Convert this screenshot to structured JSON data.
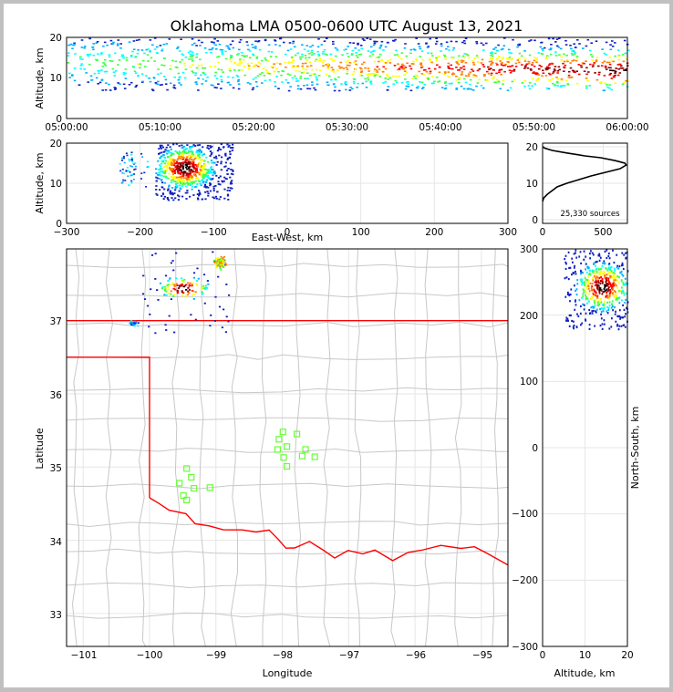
{
  "title": "Oklahoma LMA 0500-0600 UTC August 13, 2021",
  "colors": {
    "border": "#c0c0c0",
    "state_line": "#ff0000",
    "county_line": "#c8c8c8",
    "grid": "#e6e6e6",
    "station": "#66ff33",
    "density_scale": [
      "#1020c0",
      "#00b0ff",
      "#00ffff",
      "#40ff40",
      "#ffff00",
      "#ff8000",
      "#ff0000",
      "#900000",
      "#000000",
      "#ffffff"
    ]
  },
  "chart_data": [
    {
      "id": "time_height",
      "type": "heatmap",
      "xlabel": "",
      "ylabel": "Altitude, km",
      "xlim": [
        "05:00:00",
        "06:00:00"
      ],
      "xticks": [
        "05:00:00",
        "05:10:00",
        "05:20:00",
        "05:30:00",
        "05:40:00",
        "05:50:00",
        "06:00:00"
      ],
      "ylim": [
        0,
        20
      ],
      "yticks": [
        "0",
        "10",
        "20"
      ],
      "altitude_band_km": [
        7,
        20
      ]
    },
    {
      "id": "ew_altitude",
      "type": "heatmap",
      "xlabel": "East-West, km",
      "ylabel": "Altitude, km",
      "xlim": [
        -300,
        300
      ],
      "xticks": [
        "−300",
        "−200",
        "−100",
        "0",
        "100",
        "200",
        "300"
      ],
      "ylim": [
        0,
        20
      ],
      "yticks": [
        "0",
        "10",
        "20"
      ],
      "cluster": {
        "x_km": [
          -180,
          -75
        ],
        "z_km": [
          6,
          20
        ],
        "core_x_km": -140,
        "core_z_km": 14
      }
    },
    {
      "id": "altitude_histogram",
      "type": "line",
      "xlim": [
        0,
        700
      ],
      "xticks": [
        "0",
        "500"
      ],
      "ylim": [
        0,
        20
      ],
      "yticks": [
        "0",
        "10",
        "20"
      ],
      "annotation": "25,330 sources",
      "series": [
        {
          "x": [
            0,
            10,
            40,
            80,
            120,
            200,
            300,
            400,
            520,
            640,
            690,
            680,
            600,
            480,
            350,
            200,
            80,
            20,
            0
          ],
          "y": [
            5.0,
            6.0,
            7.0,
            8.0,
            9.0,
            10.0,
            11.0,
            12.0,
            13.0,
            14.0,
            15.0,
            15.5,
            16.2,
            17.0,
            17.5,
            18.3,
            19.0,
            19.6,
            20.0
          ]
        }
      ]
    },
    {
      "id": "plan_view",
      "type": "heatmap",
      "xlabel": "Longitude",
      "ylabel": "Latitude",
      "xlim": [
        -101.25,
        -94.6
      ],
      "xticks": [
        "−101",
        "−100",
        "−99",
        "−98",
        "−97",
        "−96",
        "−95"
      ],
      "ylim": [
        32.55,
        37.98
      ],
      "yticks": [
        "33",
        "34",
        "35",
        "36",
        "37"
      ],
      "storm": {
        "lon": [
          -100.2,
          -98.7
        ],
        "lat": [
          36.8,
          37.95
        ],
        "core_lon": -99.5,
        "core_lat": 37.45
      },
      "stations": [
        {
          "lon": -99.44,
          "lat": 34.98
        },
        {
          "lon": -99.37,
          "lat": 34.86
        },
        {
          "lon": -99.33,
          "lat": 34.71
        },
        {
          "lon": -99.55,
          "lat": 34.78
        },
        {
          "lon": -99.49,
          "lat": 34.61
        },
        {
          "lon": -99.44,
          "lat": 34.55
        },
        {
          "lon": -99.09,
          "lat": 34.72
        },
        {
          "lon": -97.99,
          "lat": 35.48
        },
        {
          "lon": -98.05,
          "lat": 35.38
        },
        {
          "lon": -98.07,
          "lat": 35.24
        },
        {
          "lon": -97.93,
          "lat": 35.28
        },
        {
          "lon": -97.98,
          "lat": 35.13
        },
        {
          "lon": -97.93,
          "lat": 35.01
        },
        {
          "lon": -97.78,
          "lat": 35.45
        },
        {
          "lon": -97.65,
          "lat": 35.24
        },
        {
          "lon": -97.7,
          "lat": 35.15
        },
        {
          "lon": -97.51,
          "lat": 35.14
        }
      ]
    },
    {
      "id": "altitude_ns",
      "type": "heatmap",
      "xlabel": "Altitude, km",
      "ylabel": "North-South, km",
      "xlim": [
        0,
        20
      ],
      "xticks": [
        "0",
        "10",
        "20"
      ],
      "ylim": [
        -300,
        300
      ],
      "yticks": [
        "300",
        "200",
        "100",
        "0",
        "−100",
        "−200",
        "−300"
      ],
      "cluster": {
        "z_km": [
          5,
          20
        ],
        "y_km": [
          180,
          300
        ],
        "core_z_km": 14,
        "core_y_km": 244
      }
    }
  ]
}
